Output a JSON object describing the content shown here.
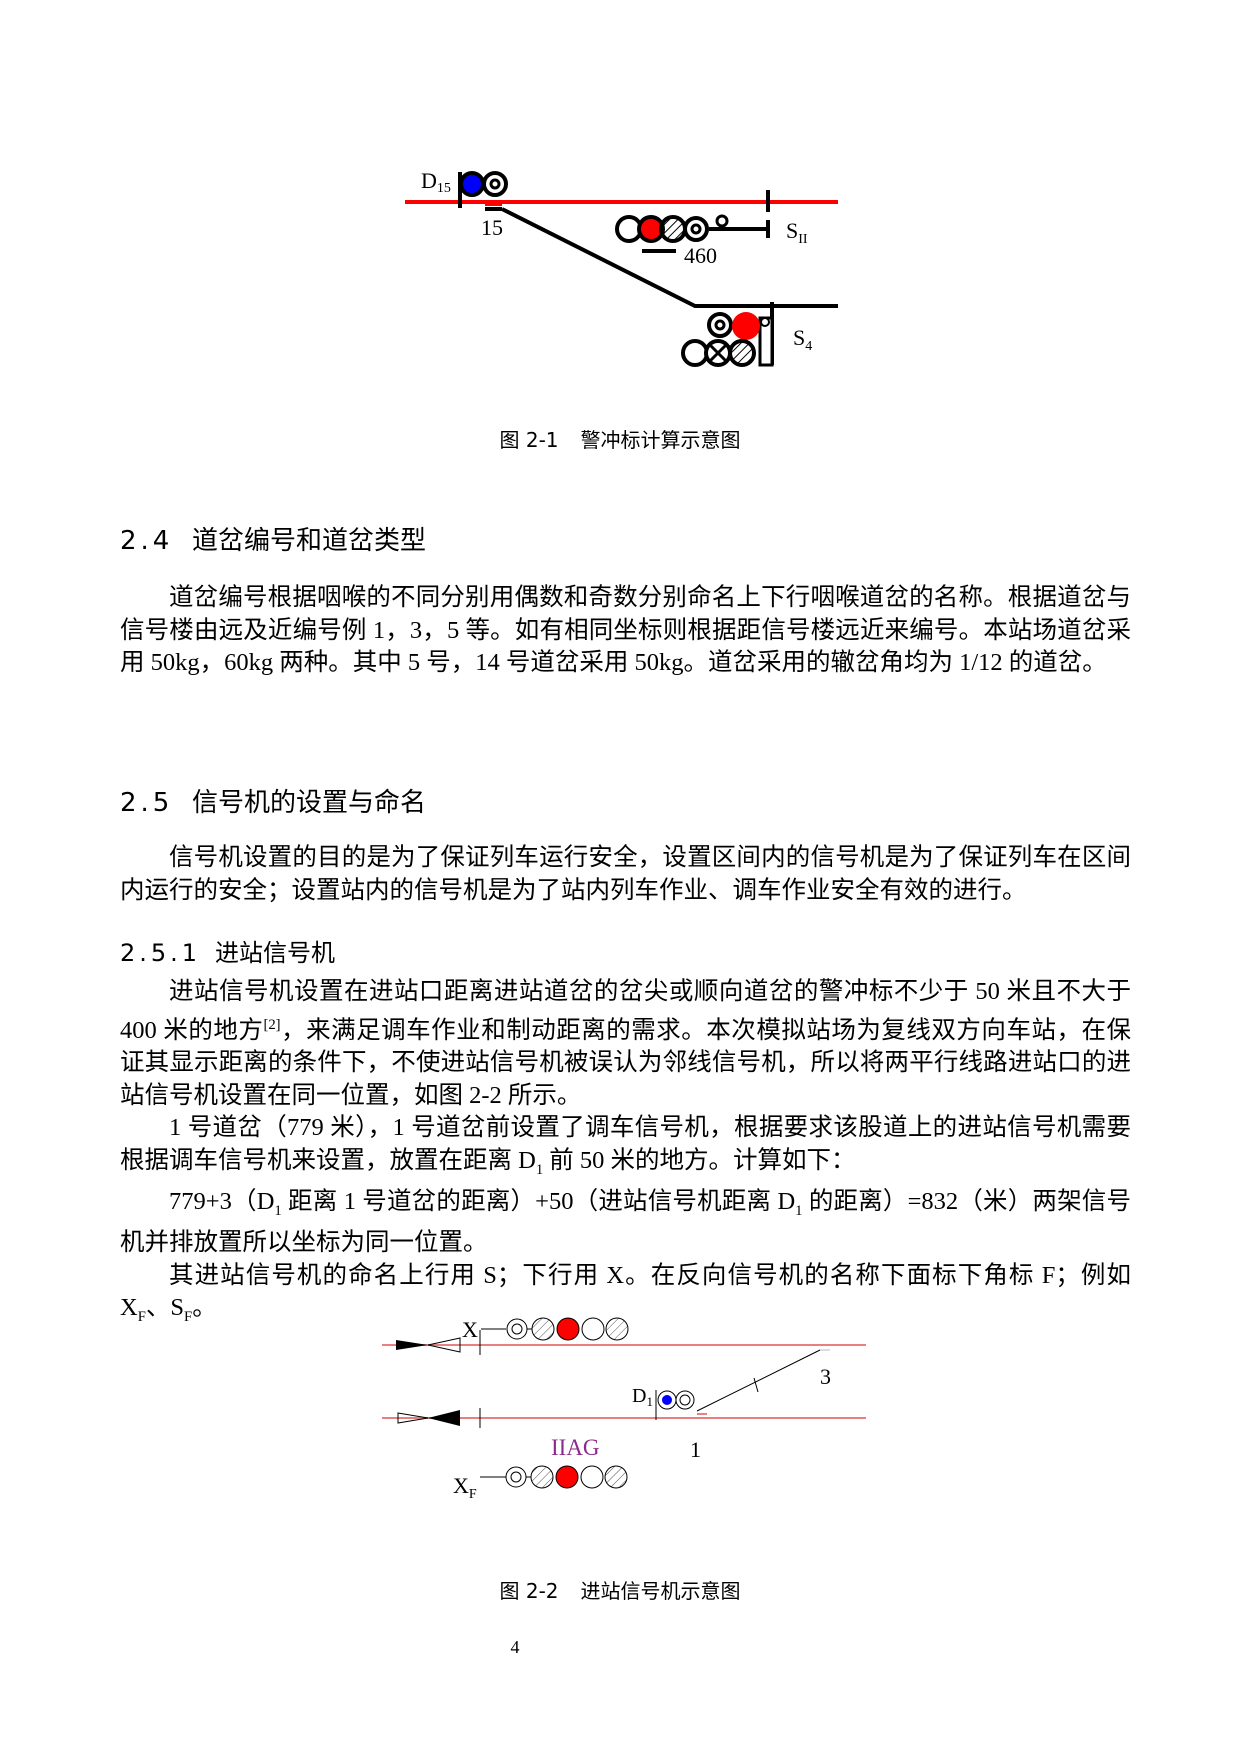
{
  "figure1": {
    "labels": {
      "d15": "D",
      "d15_sub": "15",
      "switch": "15",
      "sii": "S",
      "sii_sub": "II",
      "s4": "S",
      "s4_sub": "4",
      "distance": "460"
    },
    "caption_num": "图 2-1",
    "caption_text": "警冲标计算示意图",
    "colors": {
      "track": "#ff0000",
      "red_lamp": "#ff0000",
      "blue_lamp": "#0000ff"
    }
  },
  "section_2_4": {
    "num": "2.4",
    "title": "道岔编号和道岔类型",
    "paragraph": "道岔编号根据咽喉的不同分别用偶数和奇数分别命名上下行咽喉道岔的名称。根据道岔与信号楼由远及近编号例 1，3，5 等。如有相同坐标则根据距信号楼远近来编号。本站场道岔采用 50kg，60kg 两种。其中 5 号，14 号道岔采用 50kg。道岔采用的辙岔角均为 1/12 的道岔。"
  },
  "section_2_5": {
    "num": "2.5",
    "title": "信号机的设置与命名",
    "paragraph": "信号机设置的目的是为了保证列车运行安全，设置区间内的信号机是为了保证列车在区间内运行的安全；设置站内的信号机是为了站内列车作业、调车作业安全有效的进行。"
  },
  "section_2_5_1": {
    "num": "2.5.1",
    "title": "进站信号机",
    "p1_a": "进站信号机设置在进站口距离进站道岔的岔尖或顺向道岔的警冲标不少于 50 米且不大于 400 米的地方",
    "p1_ref": "[2]",
    "p1_b": "，来满足调车作业和制动距离的需求。本次模拟站场为复线双方向车站，在保证其显示距离的条件下，不使进站信号机被误认为邻线信号机，所以将两平行线路进站口的进站信号机设置在同一位置，如图 2-2 所示。",
    "p2_a": "1 号道岔（779 米），1 号道岔前设置了调车信号机，根据要求该股道上的进站信号机需要根据调车信号机来设置，放置在距离 D",
    "p2_sub": "1",
    "p2_b": " 前 50 米的地方。计算如下：",
    "p3_a": "779+3（D",
    "p3_sub1": "1",
    "p3_b": " 距离 1 号道岔的距离）+50（进站信号机距离 D",
    "p3_sub2": "1",
    "p3_c": " 的距离）=832（米）两架信号机并排放置所以坐标为同一位置。",
    "p4": "其进站信号机的命名上行用 S；下行用 X。在反向信号机的名称下面标下角标 F；例如 X",
    "p4_sub1": "F",
    "p4_mid": "、S",
    "p4_sub2": "F",
    "p4_end": "。"
  },
  "figure2": {
    "labels": {
      "x": "X",
      "xf": "X",
      "xf_sub": "F",
      "d1": "D",
      "d1_sub": "1",
      "iiag": "IIAG",
      "switch1": "1",
      "switch3": "3"
    },
    "caption_num": "图 2-2",
    "caption_text": "进站信号机示意图",
    "colors": {
      "track": "#e88080",
      "red_lamp": "#ff0000",
      "blue_lamp": "#0000ff",
      "iiag": "#8b2a8b"
    }
  },
  "page_number": "4"
}
